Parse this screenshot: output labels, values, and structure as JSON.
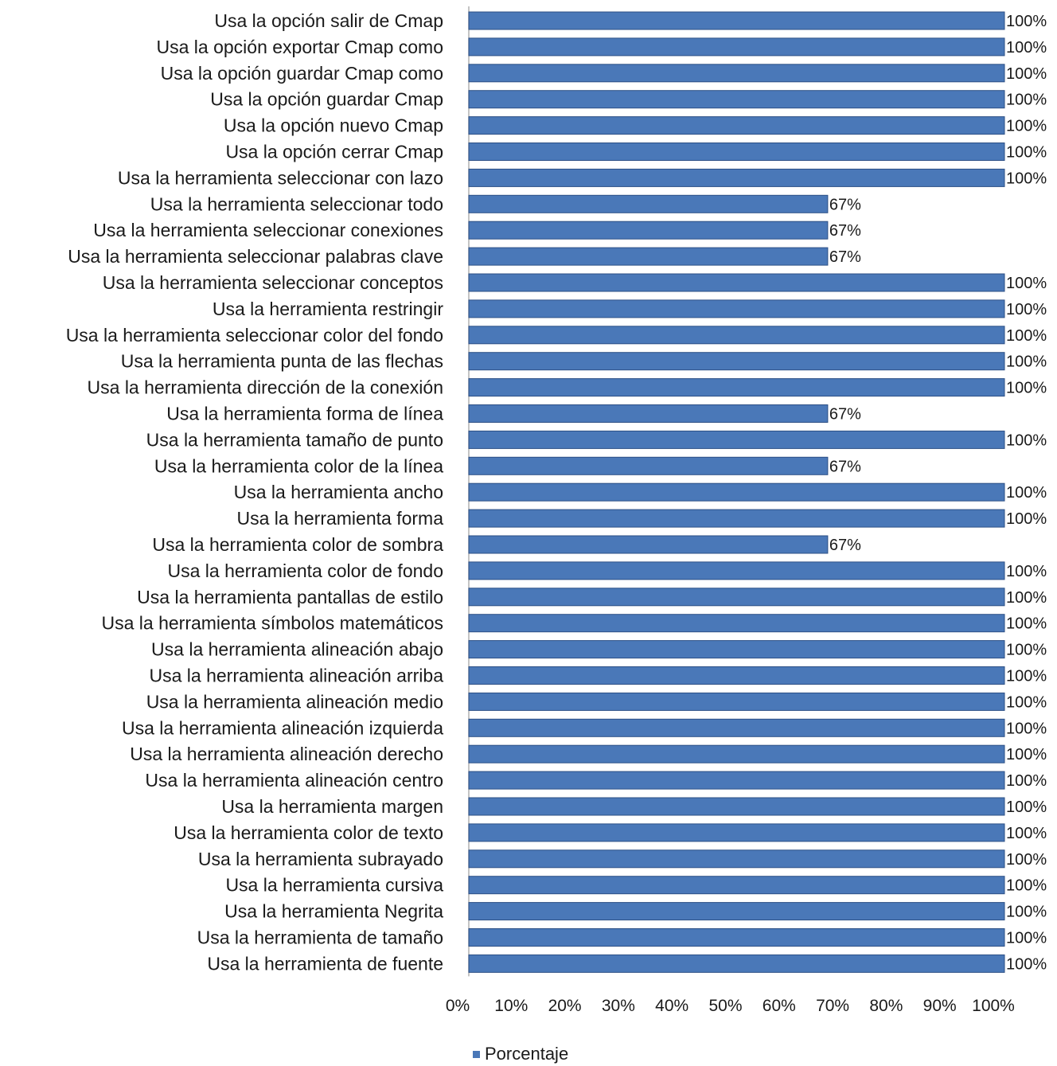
{
  "chart_data": {
    "type": "bar",
    "orientation": "horizontal",
    "categories": [
      "Usa la opción salir de Cmap",
      "Usa la opción exportar Cmap como",
      "Usa la opción guardar Cmap como",
      "Usa la opción guardar Cmap",
      "Usa la opción nuevo Cmap",
      "Usa la opción cerrar Cmap",
      "Usa la herramienta seleccionar con lazo",
      "Usa la herramienta seleccionar todo",
      "Usa la herramienta seleccionar conexiones",
      "Usa la herramienta seleccionar palabras clave",
      "Usa la herramienta seleccionar conceptos",
      "Usa la herramienta restringir",
      "Usa la herramienta seleccionar color del fondo",
      "Usa la herramienta punta de las flechas",
      "Usa la herramienta dirección de la conexión",
      "Usa la herramienta forma de línea",
      "Usa la herramienta tamaño de punto",
      "Usa la herramienta color de la línea",
      "Usa la herramienta ancho",
      "Usa la herramienta forma",
      "Usa la herramienta color de sombra",
      "Usa la herramienta color de fondo",
      "Usa la herramienta pantallas de estilo",
      "Usa la herramienta símbolos matemáticos",
      "Usa la herramienta alineación abajo",
      "Usa la herramienta alineación arriba",
      "Usa la herramienta alineación medio",
      "Usa la herramienta alineación izquierda",
      "Usa la herramienta alineación derecho",
      "Usa la herramienta alineación centro",
      "Usa la herramienta margen",
      "Usa la herramienta color de texto",
      "Usa la herramienta subrayado",
      "Usa la herramienta cursiva",
      "Usa la herramienta Negrita",
      "Usa la herramienta de tamaño",
      "Usa la herramienta de fuente"
    ],
    "series": [
      {
        "name": "Porcentaje",
        "values": [
          100,
          100,
          100,
          100,
          100,
          100,
          100,
          67,
          67,
          67,
          100,
          100,
          100,
          100,
          100,
          67,
          100,
          67,
          100,
          100,
          67,
          100,
          100,
          100,
          100,
          100,
          100,
          100,
          100,
          100,
          100,
          100,
          100,
          100,
          100,
          100,
          100
        ],
        "data_labels": [
          "100%",
          "100%",
          "100%",
          "100%",
          "100%",
          "100%",
          "100%",
          "67%",
          "67%",
          "67%",
          "100%",
          "100%",
          "100%",
          "100%",
          "100%",
          "67%",
          "100%",
          "67%",
          "100%",
          "100%",
          "67%",
          "100%",
          "100%",
          "100%",
          "100%",
          "100%",
          "100%",
          "100%",
          "100%",
          "100%",
          "100%",
          "100%",
          "100%",
          "100%",
          "100%",
          "100%",
          "100%"
        ]
      }
    ],
    "x_ticks": [
      "0%",
      "10%",
      "20%",
      "30%",
      "40%",
      "50%",
      "60%",
      "70%",
      "80%",
      "90%",
      "100%"
    ],
    "xlim": [
      0,
      100
    ],
    "title": "",
    "xlabel": "",
    "ylabel": "",
    "grid": false,
    "legend": {
      "position": "bottom",
      "entries": [
        "Porcentaje"
      ]
    },
    "colors": {
      "bar": "#4a78b8",
      "bar_stroke": "#2c4f85",
      "axis": "#b0b0b0"
    }
  }
}
